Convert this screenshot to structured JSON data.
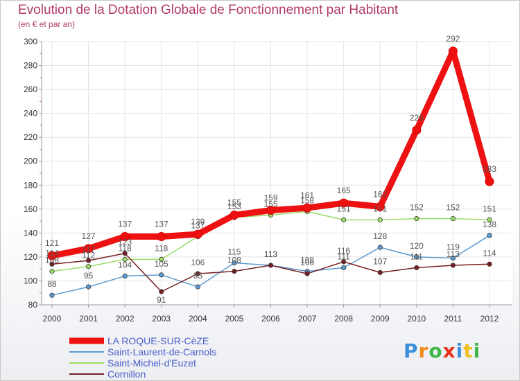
{
  "chart_data": {
    "type": "line",
    "title": "Evolution de la Dotation Globale de Fonctionnement par Habitant",
    "subtitle": "(en € et par an)",
    "x": [
      "2000",
      "2001",
      "2002",
      "2003",
      "2004",
      "2005",
      "2006",
      "2007",
      "2008",
      "2009",
      "2010",
      "2011",
      "2012"
    ],
    "ylim": [
      80,
      300
    ],
    "yticks": [
      80,
      100,
      120,
      140,
      160,
      180,
      200,
      220,
      240,
      260,
      280,
      300
    ],
    "ytick_labels": [
      "80",
      "100",
      "120",
      "140",
      "160",
      "180",
      "200",
      "220",
      "240",
      "260",
      "280",
      "300"
    ],
    "series": [
      {
        "name": "LA ROQUE-SUR-CèZE",
        "color": "#ee1111",
        "values": [
          121,
          127,
          137,
          137,
          139,
          155,
          159,
          161,
          165,
          162,
          226,
          292,
          183
        ]
      },
      {
        "name": "Saint-Laurent-de-Carnols",
        "color": "#5a9ad0",
        "values": [
          88,
          95,
          104,
          105,
          95,
          115,
          113,
          108,
          111,
          128,
          120,
          119,
          138
        ]
      },
      {
        "name": "Saint-Michel-d'Euzet",
        "color": "#99dd66",
        "values": [
          108,
          112,
          118,
          118,
          137,
          153,
          155,
          158,
          151,
          151,
          152,
          152,
          151
        ]
      },
      {
        "name": "Cornillon",
        "color": "#771f22",
        "values": [
          114,
          117,
          123,
          91,
          106,
          108,
          113,
          106,
          116,
          107,
          111,
          113,
          114
        ]
      }
    ],
    "legend_position": "bottom-left"
  },
  "logo": {
    "letters": [
      "P",
      "r",
      "o",
      "x",
      "i",
      "t",
      "i"
    ],
    "colors": [
      "#3a8fd8",
      "#f08a1e",
      "#3fb54a",
      "#e8341c",
      "#3a8fd8",
      "#f0c020",
      "#3fb54a"
    ]
  }
}
